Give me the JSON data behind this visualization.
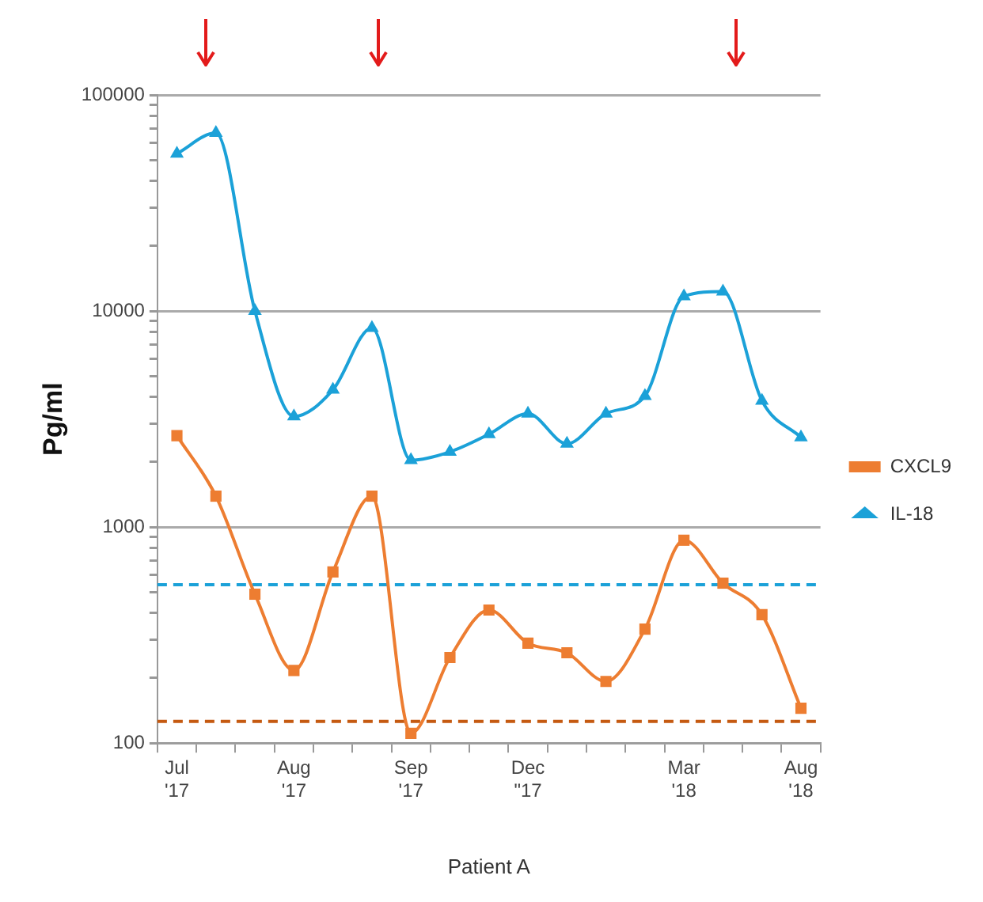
{
  "chart_data": {
    "type": "line",
    "xlabel": "Patient A",
    "ylabel": "Pg/ml",
    "log": "y",
    "grid": "y",
    "legend": "right",
    "line_style": "solid",
    "categories": [
      "Jul '17",
      null,
      null,
      "Aug '17",
      null,
      null,
      "Sep '17",
      null,
      null,
      "Dec \"17",
      null,
      null,
      null,
      "Mar '18",
      null,
      null,
      "Aug '18"
    ],
    "ylim": [
      100,
      100000
    ],
    "yticks": [
      100,
      {
        "value": 200,
        "label": null
      },
      {
        "value": 300,
        "label": null
      },
      {
        "value": 400,
        "label": null
      },
      {
        "value": 500,
        "label": null
      },
      {
        "value": 600,
        "label": null
      },
      {
        "value": 700,
        "label": null
      },
      {
        "value": 800,
        "label": null
      },
      {
        "value": 900,
        "label": null
      },
      1000,
      {
        "value": 2000,
        "label": null
      },
      {
        "value": 3000,
        "label": null
      },
      {
        "value": 4000,
        "label": null
      },
      {
        "value": 5000,
        "label": null
      },
      {
        "value": 6000,
        "label": null
      },
      {
        "value": 7000,
        "label": null
      },
      {
        "value": 8000,
        "label": null
      },
      {
        "value": 9000,
        "label": null
      },
      10000,
      {
        "value": 20000,
        "label": null
      },
      {
        "value": 30000,
        "label": null
      },
      {
        "value": 40000,
        "label": null
      },
      {
        "value": 50000,
        "label": null
      },
      {
        "value": 60000,
        "label": null
      },
      {
        "value": 70000,
        "label": null
      },
      {
        "value": 80000,
        "label": null
      },
      {
        "value": 90000,
        "label": null
      },
      100000
    ],
    "series": [
      {
        "name": "CXCL9",
        "color": "#ed7d31",
        "marker": "square",
        "values": [
          2650,
          1390,
          489,
          217,
          620,
          1390,
          111,
          249,
          413,
          290,
          262,
          193,
          337,
          869,
          550,
          393,
          145
        ]
      },
      {
        "name": "IL-18",
        "color": "#1ba1d8",
        "marker": "triangle",
        "values": [
          53500,
          66700,
          10000,
          3250,
          4320,
          8350,
          2040,
          2230,
          2690,
          3350,
          2430,
          3350,
          4040,
          11700,
          12300,
          3840,
          2600
        ]
      }
    ],
    "ref_lines": [
      {
        "axis": "y",
        "value": 541,
        "color": "#1ba1d8",
        "line_style": "dashed"
      },
      {
        "axis": "y",
        "value": 126,
        "color": "#c55a11",
        "line_style": "dashed"
      }
    ]
  }
}
